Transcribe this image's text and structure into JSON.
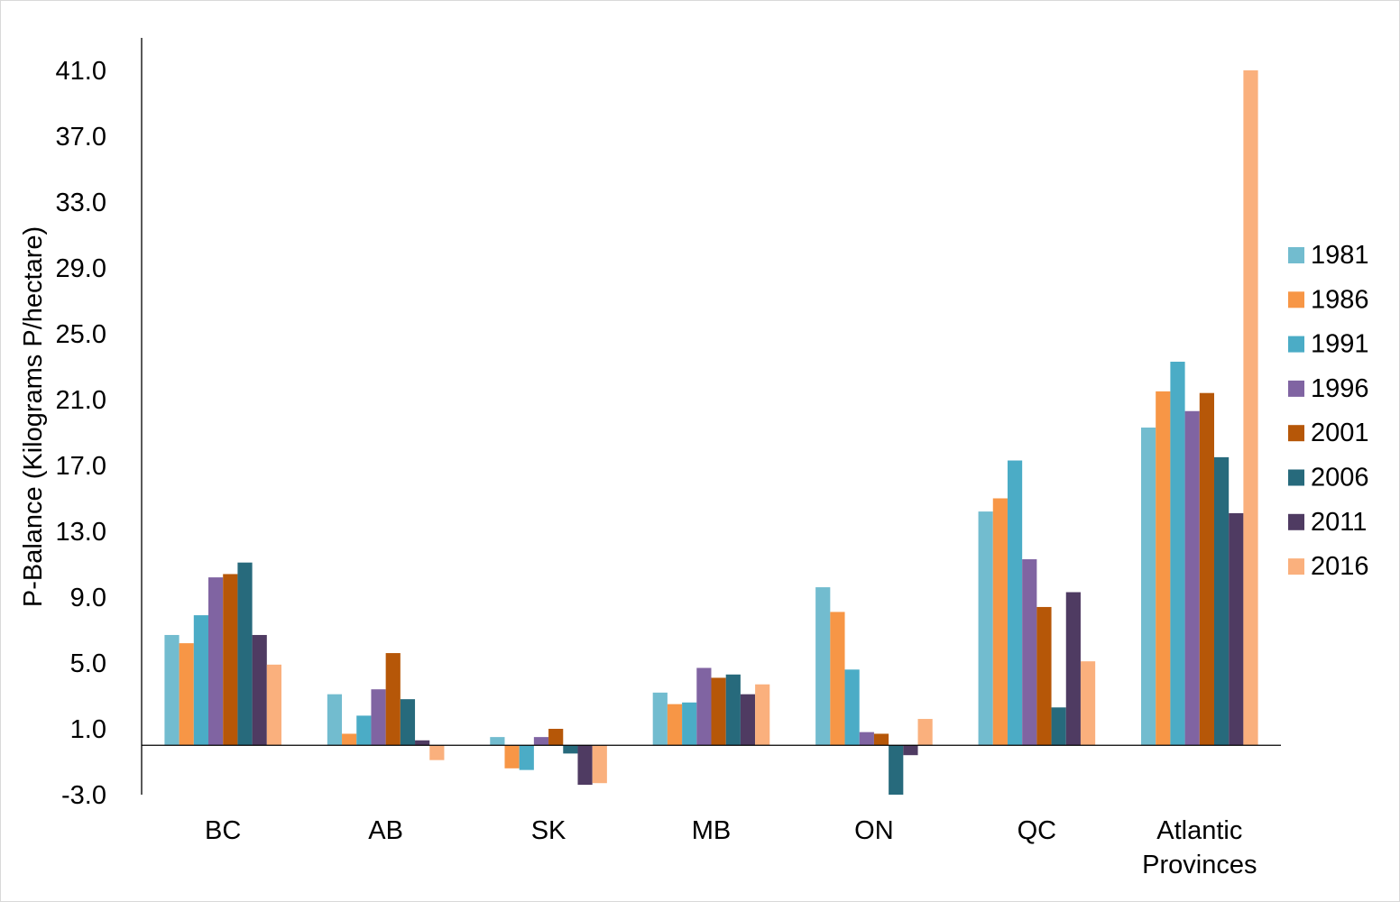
{
  "chart_data": {
    "type": "bar",
    "title": "",
    "xlabel": "",
    "ylabel": "P-Balance (Kilograms P/hectare)",
    "ylim": [
      -3.0,
      41.0
    ],
    "yticks": [
      "41.0",
      "37.0",
      "33.0",
      "29.0",
      "25.0",
      "21.0",
      "17.0",
      "13.0",
      "9.0",
      "5.0",
      "1.0",
      "-3.0"
    ],
    "yticks_values": [
      41,
      37,
      33,
      29,
      25,
      21,
      17,
      13,
      9,
      5,
      1,
      -3
    ],
    "grid": false,
    "legend_position": "right",
    "categories": [
      [
        "BC"
      ],
      [
        "AB"
      ],
      [
        "SK"
      ],
      [
        "MB"
      ],
      [
        "ON"
      ],
      [
        "QC"
      ],
      [
        "Atlantic",
        "Provinces"
      ]
    ],
    "series": [
      {
        "name": "1981",
        "color": "#72BCCF",
        "values": [
          6.7,
          3.1,
          0.5,
          3.2,
          9.6,
          14.2,
          19.3
        ]
      },
      {
        "name": "1986",
        "color": "#F79646",
        "values": [
          6.2,
          0.7,
          -1.4,
          2.5,
          8.1,
          15.0,
          21.5
        ]
      },
      {
        "name": "1991",
        "color": "#4BACC6",
        "values": [
          7.9,
          1.8,
          -1.5,
          2.6,
          4.6,
          17.3,
          23.3
        ]
      },
      {
        "name": "1996",
        "color": "#8064A2",
        "values": [
          10.2,
          3.4,
          0.5,
          4.7,
          0.8,
          11.3,
          20.3
        ]
      },
      {
        "name": "2001",
        "color": "#B65708",
        "values": [
          10.4,
          5.6,
          1.0,
          4.1,
          0.7,
          8.4,
          21.4
        ]
      },
      {
        "name": "2006",
        "color": "#276A7C",
        "values": [
          11.1,
          2.8,
          -0.5,
          4.3,
          -3.0,
          2.3,
          17.5
        ]
      },
      {
        "name": "2011",
        "color": "#4F3B62",
        "values": [
          6.7,
          0.3,
          -2.4,
          3.1,
          -0.6,
          9.3,
          14.1
        ]
      },
      {
        "name": "2016",
        "color": "#FAB07D",
        "values": [
          4.9,
          -0.9,
          -2.3,
          3.7,
          1.6,
          5.1,
          41.0
        ]
      }
    ]
  }
}
